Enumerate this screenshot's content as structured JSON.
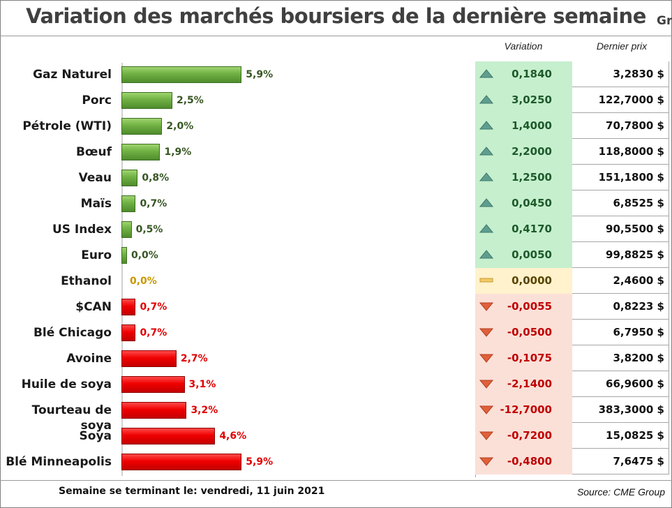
{
  "title": "Variation des marchés boursiers de la dernière semaine",
  "title_overflow": "Gr",
  "headers": {
    "variation": "Variation",
    "price": "Dernier prix"
  },
  "footer": {
    "week": "Semaine se terminant le:  vendredi, 11 juin 2021",
    "source": "Source: CME Group"
  },
  "colors": {
    "positive": "#6fb043",
    "negative": "#ef0000",
    "neutral": "#c99700",
    "pos_cell": "#c6efce",
    "neg_cell": "#fbe0d8",
    "neutral_cell": "#fff2cc"
  },
  "chart_data": {
    "type": "bar",
    "orientation": "horizontal",
    "title": "Variation des marchés boursiers de la dernière semaine",
    "categories": [
      "Gaz Naturel",
      "Porc",
      "Pétrole (WTI)",
      "Bœuf",
      "Veau",
      "Maïs",
      "US Index",
      "Euro",
      "Ethanol",
      "$CAN",
      "Blé Chicago",
      "Avoine",
      "Huile de soya",
      "Tourteau de soya",
      "Soya",
      "Blé Minneapolis"
    ],
    "values": [
      5.9,
      2.5,
      2.0,
      1.9,
      0.8,
      0.7,
      0.5,
      0.0,
      0.0,
      0.7,
      0.7,
      2.7,
      3.1,
      3.2,
      4.6,
      5.9
    ],
    "labels": [
      "5,9%",
      "2,5%",
      "2,0%",
      "1,9%",
      "0,8%",
      "0,7%",
      "0,5%",
      "0,0%",
      "0,0%",
      "0,7%",
      "0,7%",
      "2,7%",
      "3,1%",
      "3,2%",
      "4,6%",
      "5,9%"
    ],
    "direction": [
      "up",
      "up",
      "up",
      "up",
      "up",
      "up",
      "up",
      "up",
      "flat",
      "down",
      "down",
      "down",
      "down",
      "down",
      "down",
      "down"
    ],
    "variation": [
      "0,1840",
      "3,0250",
      "1,4000",
      "2,2000",
      "1,2500",
      "0,0450",
      "0,4170",
      "0,0050",
      "0,0000",
      "-0,0055",
      "-0,0500",
      "-0,1075",
      "-2,1400",
      "-12,7000",
      "-0,7200",
      "-0,4800"
    ],
    "price": [
      "3,2830 $",
      "122,7000 $",
      "70,7800 $",
      "118,8000 $",
      "151,1800 $",
      "6,8525 $",
      "90,5500 $",
      "99,8825 $",
      "2,4600 $",
      "0,8223 $",
      "6,7950 $",
      "3,8200 $",
      "66,9600 $",
      "383,3000 $",
      "15,0825 $",
      "7,6475 $"
    ]
  }
}
